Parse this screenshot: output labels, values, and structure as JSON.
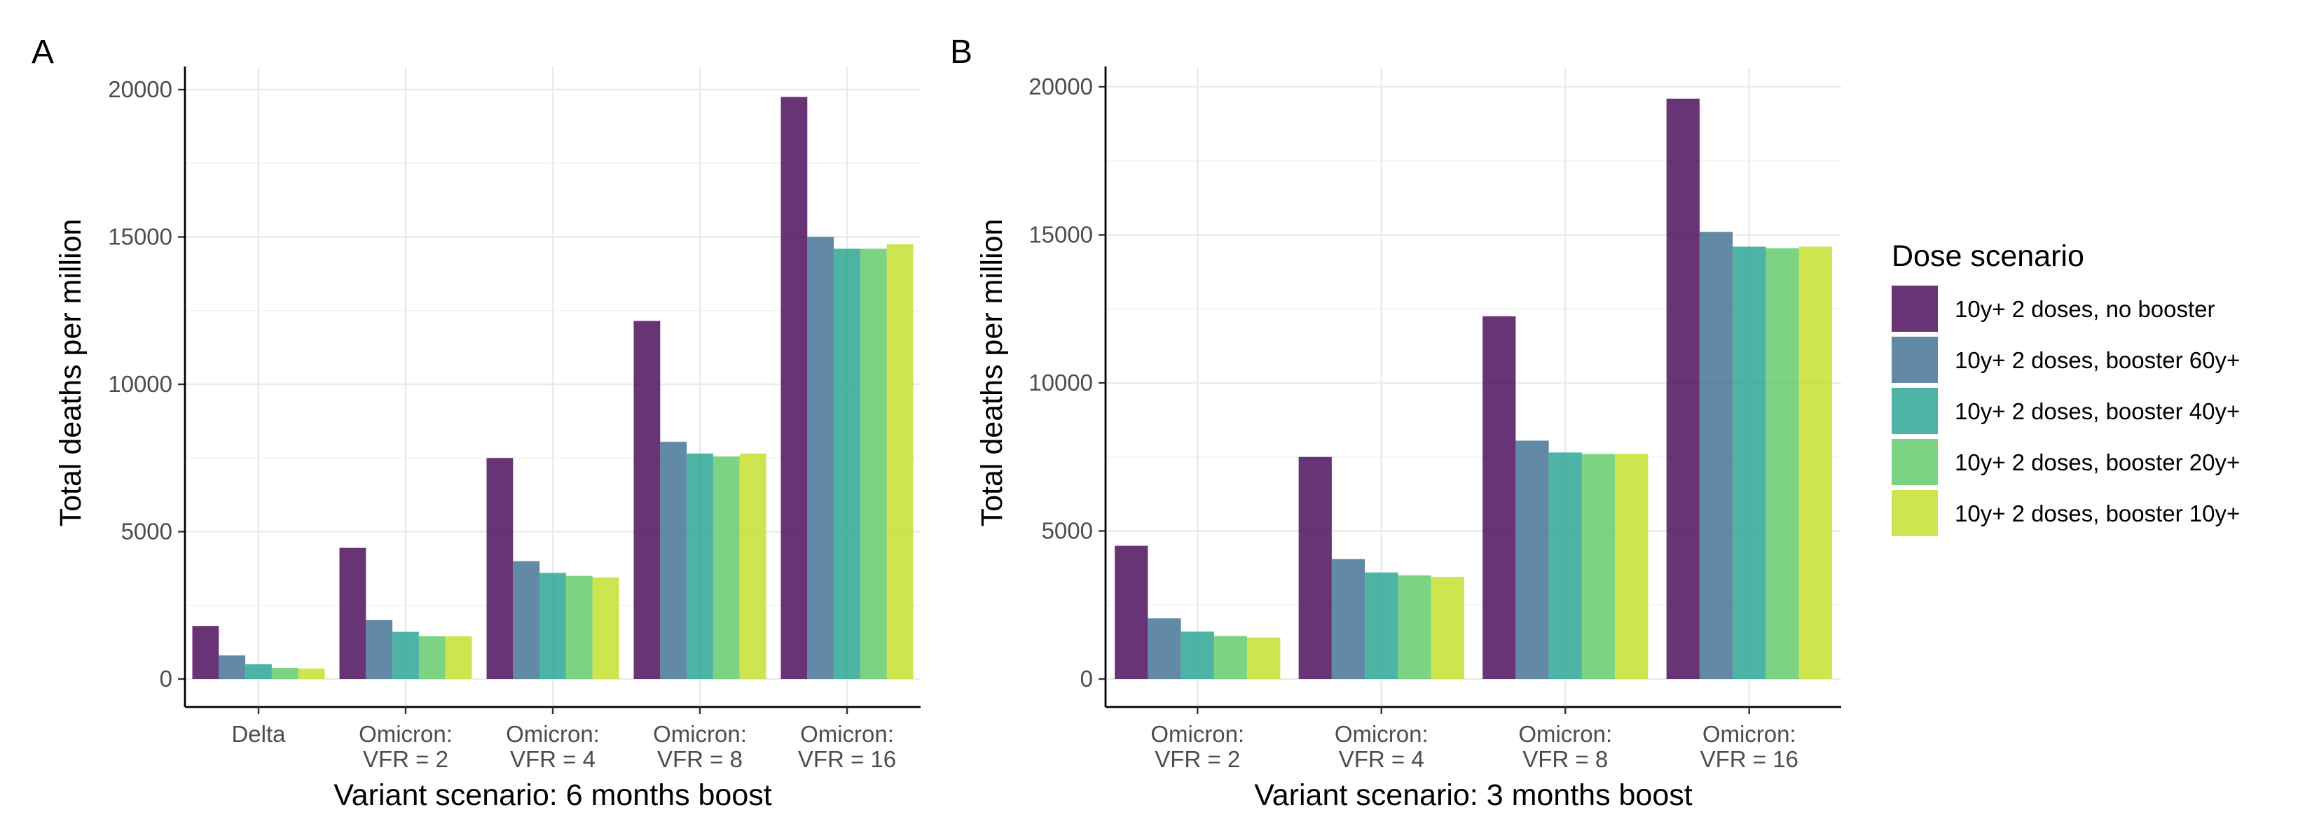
{
  "legend": {
    "title": "Dose scenario",
    "items": [
      {
        "label": "10y+ 2 doses, no booster",
        "color": "#440154"
      },
      {
        "label": "10y+ 2 doses, booster 60y+",
        "color": "#3b6c8e"
      },
      {
        "label": "10y+ 2 doses, booster 40y+",
        "color": "#21a08d"
      },
      {
        "label": "10y+ 2 doses, booster 20y+",
        "color": "#5bc864"
      },
      {
        "label": "10y+ 2 doses, booster 10y+",
        "color": "#c2df23"
      }
    ]
  },
  "chart_data": [
    {
      "panel": "A",
      "type": "bar",
      "xlabel": "Variant scenario: 6 months boost",
      "ylabel": "Total deaths per million",
      "ylim": [
        0,
        21000
      ],
      "yticks": [
        0,
        5000,
        10000,
        15000,
        20000
      ],
      "grid": true,
      "categories": [
        [
          "Delta"
        ],
        [
          "Omicron:",
          "VFR = 2"
        ],
        [
          "Omicron:",
          "VFR = 4"
        ],
        [
          "Omicron:",
          "VFR = 8"
        ],
        [
          "Omicron:",
          "VFR = 16"
        ]
      ],
      "series": [
        {
          "name": "10y+ 2 doses, no booster",
          "values": [
            1800,
            4450,
            7500,
            12150,
            19750
          ]
        },
        {
          "name": "10y+ 2 doses, booster 60y+",
          "values": [
            800,
            2000,
            4000,
            8050,
            15000
          ]
        },
        {
          "name": "10y+ 2 doses, booster 40y+",
          "values": [
            500,
            1600,
            3600,
            7650,
            14600
          ]
        },
        {
          "name": "10y+ 2 doses, booster 20y+",
          "values": [
            380,
            1450,
            3500,
            7550,
            14600
          ]
        },
        {
          "name": "10y+ 2 doses, booster 10y+",
          "values": [
            350,
            1450,
            3450,
            7650,
            14750
          ]
        }
      ]
    },
    {
      "panel": "B",
      "type": "bar",
      "xlabel": "Variant scenario: 3 months boost",
      "ylabel": "Total deaths per million",
      "ylim": [
        0,
        21000
      ],
      "yticks": [
        0,
        5000,
        10000,
        15000,
        20000
      ],
      "grid": true,
      "categories": [
        [
          "Omicron:",
          "VFR = 2"
        ],
        [
          "Omicron:",
          "VFR = 4"
        ],
        [
          "Omicron:",
          "VFR = 8"
        ],
        [
          "Omicron:",
          "VFR = 16"
        ]
      ],
      "series": [
        {
          "name": "10y+ 2 doses, no booster",
          "values": [
            4500,
            7500,
            12250,
            19600
          ]
        },
        {
          "name": "10y+ 2 doses, booster 60y+",
          "values": [
            2050,
            4050,
            8050,
            15100
          ]
        },
        {
          "name": "10y+ 2 doses, booster 40y+",
          "values": [
            1600,
            3600,
            7650,
            14600
          ]
        },
        {
          "name": "10y+ 2 doses, booster 20y+",
          "values": [
            1450,
            3500,
            7600,
            14550
          ]
        },
        {
          "name": "10y+ 2 doses, booster 10y+",
          "values": [
            1400,
            3450,
            7600,
            14600
          ]
        }
      ]
    }
  ]
}
